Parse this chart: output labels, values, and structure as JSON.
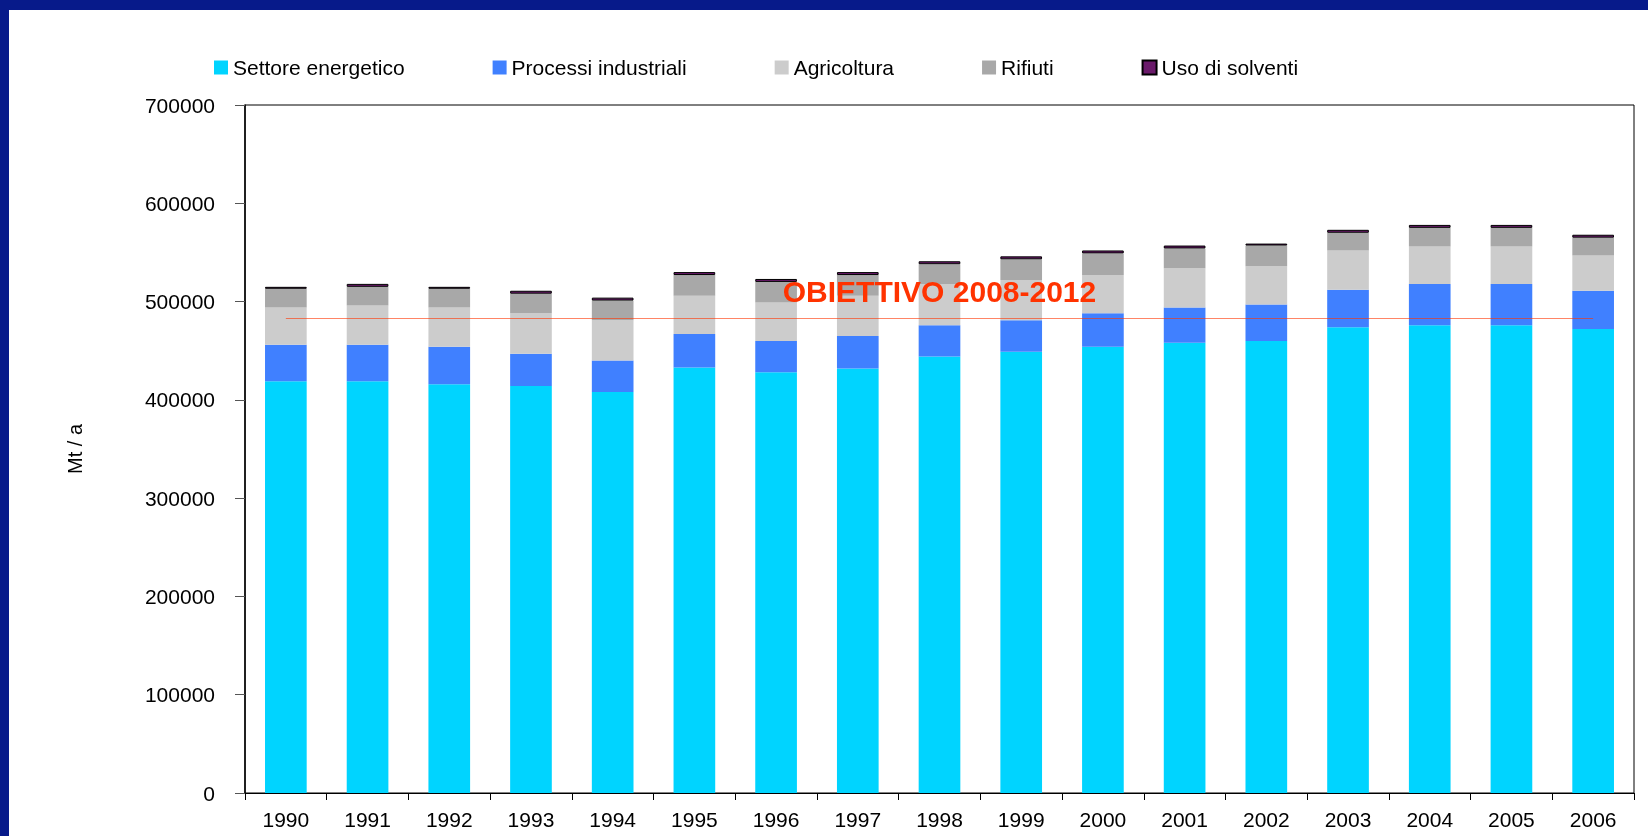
{
  "chart_data": {
    "type": "bar",
    "stacked": true,
    "ylabel": "Mt / a",
    "legend": "top",
    "categories": [
      "1990",
      "1991",
      "1992",
      "1993",
      "1994",
      "1995",
      "1996",
      "1997",
      "1998",
      "1999",
      "2000",
      "2001",
      "2002",
      "2003",
      "2004",
      "2005",
      "2006"
    ],
    "series": [
      {
        "name": "Settore energetico",
        "color": "#00d4ff",
        "values": [
          419000,
          419000,
          416000,
          414000,
          408000,
          433000,
          428000,
          432000,
          444000,
          449000,
          454000,
          458000,
          460000,
          474000,
          476000,
          476000,
          472000
        ]
      },
      {
        "name": "Processi industriali",
        "color": "#4080ff",
        "values": [
          37000,
          37000,
          38000,
          33000,
          32000,
          34000,
          32000,
          33000,
          32000,
          32000,
          34000,
          36000,
          37000,
          38000,
          42000,
          42000,
          39000
        ]
      },
      {
        "name": "Agricoltura",
        "color": "#cccccc",
        "values": [
          38000,
          40000,
          40000,
          41000,
          41000,
          39000,
          39000,
          41000,
          42000,
          41000,
          39000,
          40000,
          39000,
          40000,
          38000,
          38000,
          36000
        ]
      },
      {
        "name": "Rifiuti",
        "color": "#a8a8a8",
        "values": [
          19000,
          19000,
          19000,
          20000,
          20000,
          21000,
          21000,
          21000,
          20000,
          21000,
          22000,
          20000,
          21000,
          18000,
          19000,
          19000,
          18000
        ]
      },
      {
        "name": "Uso di solventi",
        "color": "#6a1a6a",
        "values": [
          2000,
          3000,
          2000,
          3000,
          3000,
          3000,
          3000,
          3000,
          3000,
          3000,
          3000,
          3000,
          2000,
          3000,
          3000,
          3000,
          3000
        ]
      }
    ],
    "ylim": [
      0,
      700000
    ],
    "yticks": [
      0,
      100000,
      200000,
      300000,
      400000,
      500000,
      600000,
      700000
    ],
    "ref_lines": [
      {
        "axis": "y",
        "value": 483000,
        "label": "OBIETTIVO 2008-2012",
        "color": "#ff3300"
      }
    ]
  }
}
